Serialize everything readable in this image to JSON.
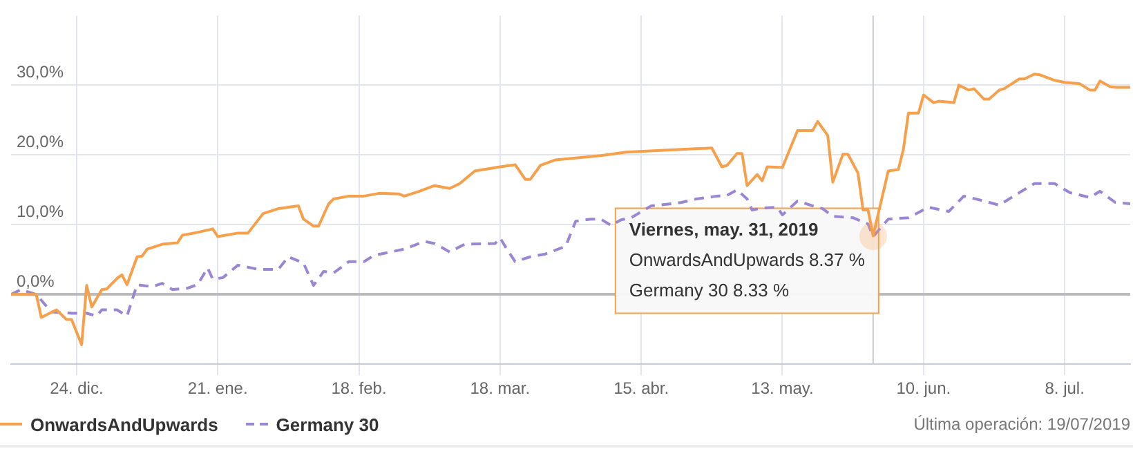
{
  "chart_data": {
    "type": "line",
    "xlim": [
      "2018-12-11",
      "2019-07-21"
    ],
    "ylim": [
      -10,
      40
    ],
    "xticks": [
      {
        "value": "2018-12-24",
        "label": "24. dic."
      },
      {
        "value": "2019-01-21",
        "label": "21. ene."
      },
      {
        "value": "2019-02-18",
        "label": "18. feb."
      },
      {
        "value": "2019-03-18",
        "label": "18. mar."
      },
      {
        "value": "2019-04-15",
        "label": "15. abr."
      },
      {
        "value": "2019-05-13",
        "label": "13. may."
      },
      {
        "value": "2019-06-10",
        "label": "10. jun."
      },
      {
        "value": "2019-07-08",
        "label": "8. jul."
      }
    ],
    "yticks": [
      {
        "value": 0,
        "label": "0,0%"
      },
      {
        "value": 10,
        "label": "10,0%"
      },
      {
        "value": 20,
        "label": "20,0%"
      },
      {
        "value": 30,
        "label": "30,0%"
      }
    ],
    "grid": true,
    "legend": "bottom",
    "marker": "none",
    "series": [
      {
        "name": "OnwardsAndUpwards",
        "color": "#f7a04b",
        "line_style": "solid",
        "x": [
          "2018-12-11",
          "2018-12-16",
          "2018-12-17",
          "2018-12-20",
          "2018-12-22",
          "2018-12-23",
          "2018-12-25",
          "2018-12-26",
          "2018-12-27",
          "2018-12-29",
          "2018-12-30",
          "2019-01-01",
          "2019-01-02",
          "2019-01-03",
          "2019-01-05",
          "2019-01-06",
          "2019-01-07",
          "2019-01-10",
          "2019-01-13",
          "2019-01-14",
          "2019-01-17",
          "2019-01-20",
          "2019-01-21",
          "2019-01-25",
          "2019-01-27",
          "2019-01-30",
          "2019-02-02",
          "2019-02-06",
          "2019-02-07",
          "2019-02-09",
          "2019-02-10",
          "2019-02-12",
          "2019-02-13",
          "2019-02-16",
          "2019-02-19",
          "2019-02-22",
          "2019-02-26",
          "2019-02-27",
          "2019-03-02",
          "2019-03-05",
          "2019-03-08",
          "2019-03-10",
          "2019-03-13",
          "2019-03-18",
          "2019-03-21",
          "2019-03-23",
          "2019-03-24",
          "2019-03-26",
          "2019-03-29",
          "2019-04-07",
          "2019-04-12",
          "2019-04-23",
          "2019-04-29",
          "2019-05-01",
          "2019-05-02",
          "2019-05-04",
          "2019-05-05",
          "2019-05-06",
          "2019-05-08",
          "2019-05-09",
          "2019-05-10",
          "2019-05-13",
          "2019-05-16",
          "2019-05-19",
          "2019-05-20",
          "2019-05-22",
          "2019-05-23",
          "2019-05-25",
          "2019-05-26",
          "2019-05-28",
          "2019-05-29",
          "2019-05-30",
          "2019-05-31",
          "2019-06-03",
          "2019-06-05",
          "2019-06-06",
          "2019-06-07",
          "2019-06-09",
          "2019-06-10",
          "2019-06-12",
          "2019-06-13",
          "2019-06-16",
          "2019-06-17",
          "2019-06-19",
          "2019-06-20",
          "2019-06-22",
          "2019-06-23",
          "2019-06-25",
          "2019-06-26",
          "2019-06-29",
          "2019-06-30",
          "2019-07-02",
          "2019-07-03",
          "2019-07-06",
          "2019-07-08",
          "2019-07-11",
          "2019-07-13",
          "2019-07-14",
          "2019-07-15",
          "2019-07-17",
          "2019-07-18",
          "2019-07-21"
        ],
        "values": [
          0,
          0,
          -3.3,
          -2.2,
          -3.6,
          -3.6,
          -7.2,
          1.3,
          -1.8,
          0.7,
          0.8,
          2.3,
          2.8,
          1.4,
          5.4,
          5.5,
          6.5,
          7.2,
          7.4,
          8.5,
          8.9,
          9.4,
          8.3,
          8.8,
          8.8,
          11.6,
          12.3,
          12.7,
          10.8,
          9.8,
          9.8,
          13.0,
          13.7,
          14.1,
          14.1,
          14.5,
          14.4,
          14.1,
          14.8,
          15.6,
          15.2,
          15.9,
          17.7,
          18.3,
          18.6,
          16.5,
          16.5,
          18.5,
          19.3,
          19.9,
          20.4,
          20.8,
          21.0,
          18.3,
          18.5,
          20.2,
          20.2,
          15.6,
          17.2,
          16.3,
          18.3,
          18.2,
          23.5,
          23.5,
          24.8,
          22.8,
          16.1,
          20.1,
          20.1,
          17.4,
          12.1,
          12.1,
          8.4,
          17.7,
          17.9,
          20.8,
          26.0,
          26.0,
          28.6,
          27.5,
          27.7,
          27.5,
          30.0,
          29.3,
          29.5,
          28.0,
          28.0,
          29.3,
          29.5,
          30.9,
          30.9,
          31.6,
          31.5,
          30.7,
          30.4,
          30.2,
          29.3,
          29.3,
          30.6,
          29.8,
          29.7,
          29.7
        ]
      },
      {
        "name": "Germany 30",
        "color": "#9b86d3",
        "line_style": "dashed",
        "x": [
          "2018-12-11",
          "2018-12-13",
          "2018-12-16",
          "2018-12-19",
          "2018-12-23",
          "2018-12-26",
          "2018-12-28",
          "2018-12-29",
          "2019-01-01",
          "2019-01-03",
          "2019-01-05",
          "2019-01-08",
          "2019-01-10",
          "2019-01-12",
          "2019-01-15",
          "2019-01-17",
          "2019-01-19",
          "2019-01-20",
          "2019-01-22",
          "2019-01-25",
          "2019-01-29",
          "2019-02-02",
          "2019-02-04",
          "2019-02-07",
          "2019-02-09",
          "2019-02-11",
          "2019-02-13",
          "2019-02-16",
          "2019-02-19",
          "2019-02-21",
          "2019-02-25",
          "2019-02-27",
          "2019-03-03",
          "2019-03-05",
          "2019-03-08",
          "2019-03-11",
          "2019-03-17",
          "2019-03-18",
          "2019-03-19",
          "2019-03-21",
          "2019-03-24",
          "2019-03-27",
          "2019-03-31",
          "2019-04-02",
          "2019-04-05",
          "2019-04-07",
          "2019-04-09",
          "2019-04-11",
          "2019-04-13",
          "2019-04-17",
          "2019-04-21",
          "2019-04-23",
          "2019-04-26",
          "2019-04-30",
          "2019-05-02",
          "2019-05-04",
          "2019-05-06",
          "2019-05-07",
          "2019-05-09",
          "2019-05-12",
          "2019-05-13",
          "2019-05-16",
          "2019-05-19",
          "2019-05-21",
          "2019-05-23",
          "2019-05-27",
          "2019-05-30",
          "2019-05-31",
          "2019-06-03",
          "2019-06-07",
          "2019-06-11",
          "2019-06-15",
          "2019-06-18",
          "2019-06-22",
          "2019-06-25",
          "2019-06-29",
          "2019-07-02",
          "2019-07-06",
          "2019-07-09",
          "2019-07-13",
          "2019-07-15",
          "2019-07-18",
          "2019-07-21"
        ],
        "values": [
          0,
          0.7,
          0,
          -2.5,
          -2.7,
          -2.7,
          -3.1,
          -2.2,
          -2.2,
          -3.1,
          1.4,
          1.1,
          1.6,
          0.7,
          0.9,
          1.4,
          3.8,
          2.2,
          2.4,
          4.2,
          3.6,
          3.6,
          5.4,
          4.5,
          1.3,
          3.3,
          3.1,
          4.7,
          4.7,
          5.6,
          6.2,
          6.5,
          7.6,
          7.3,
          6.1,
          7.2,
          7.3,
          8.1,
          6.9,
          4.7,
          5.4,
          5.8,
          6.9,
          10.5,
          10.8,
          10.8,
          9.9,
          10.7,
          11.0,
          12.7,
          13.0,
          13.2,
          13.7,
          14.1,
          14.2,
          15.0,
          13.7,
          12.1,
          12.4,
          12.5,
          11.4,
          13.4,
          12.7,
          12.3,
          11.2,
          11.0,
          10.1,
          8.3,
          10.8,
          11.0,
          12.5,
          11.9,
          14.1,
          13.4,
          12.8,
          14.6,
          15.9,
          15.9,
          14.6,
          13.9,
          14.8,
          13.2,
          13.0
        ]
      }
    ],
    "ref_lines": [
      {
        "axis": "x",
        "value": "2019-05-31",
        "color": "#c8ccd8"
      }
    ],
    "annotations": [
      "Viernes, may. 31, 2019",
      "OnwardsAndUpwards 8.37 %",
      "Germany 30 8.33 %",
      "Última operación: 19/07/2019"
    ]
  }
}
